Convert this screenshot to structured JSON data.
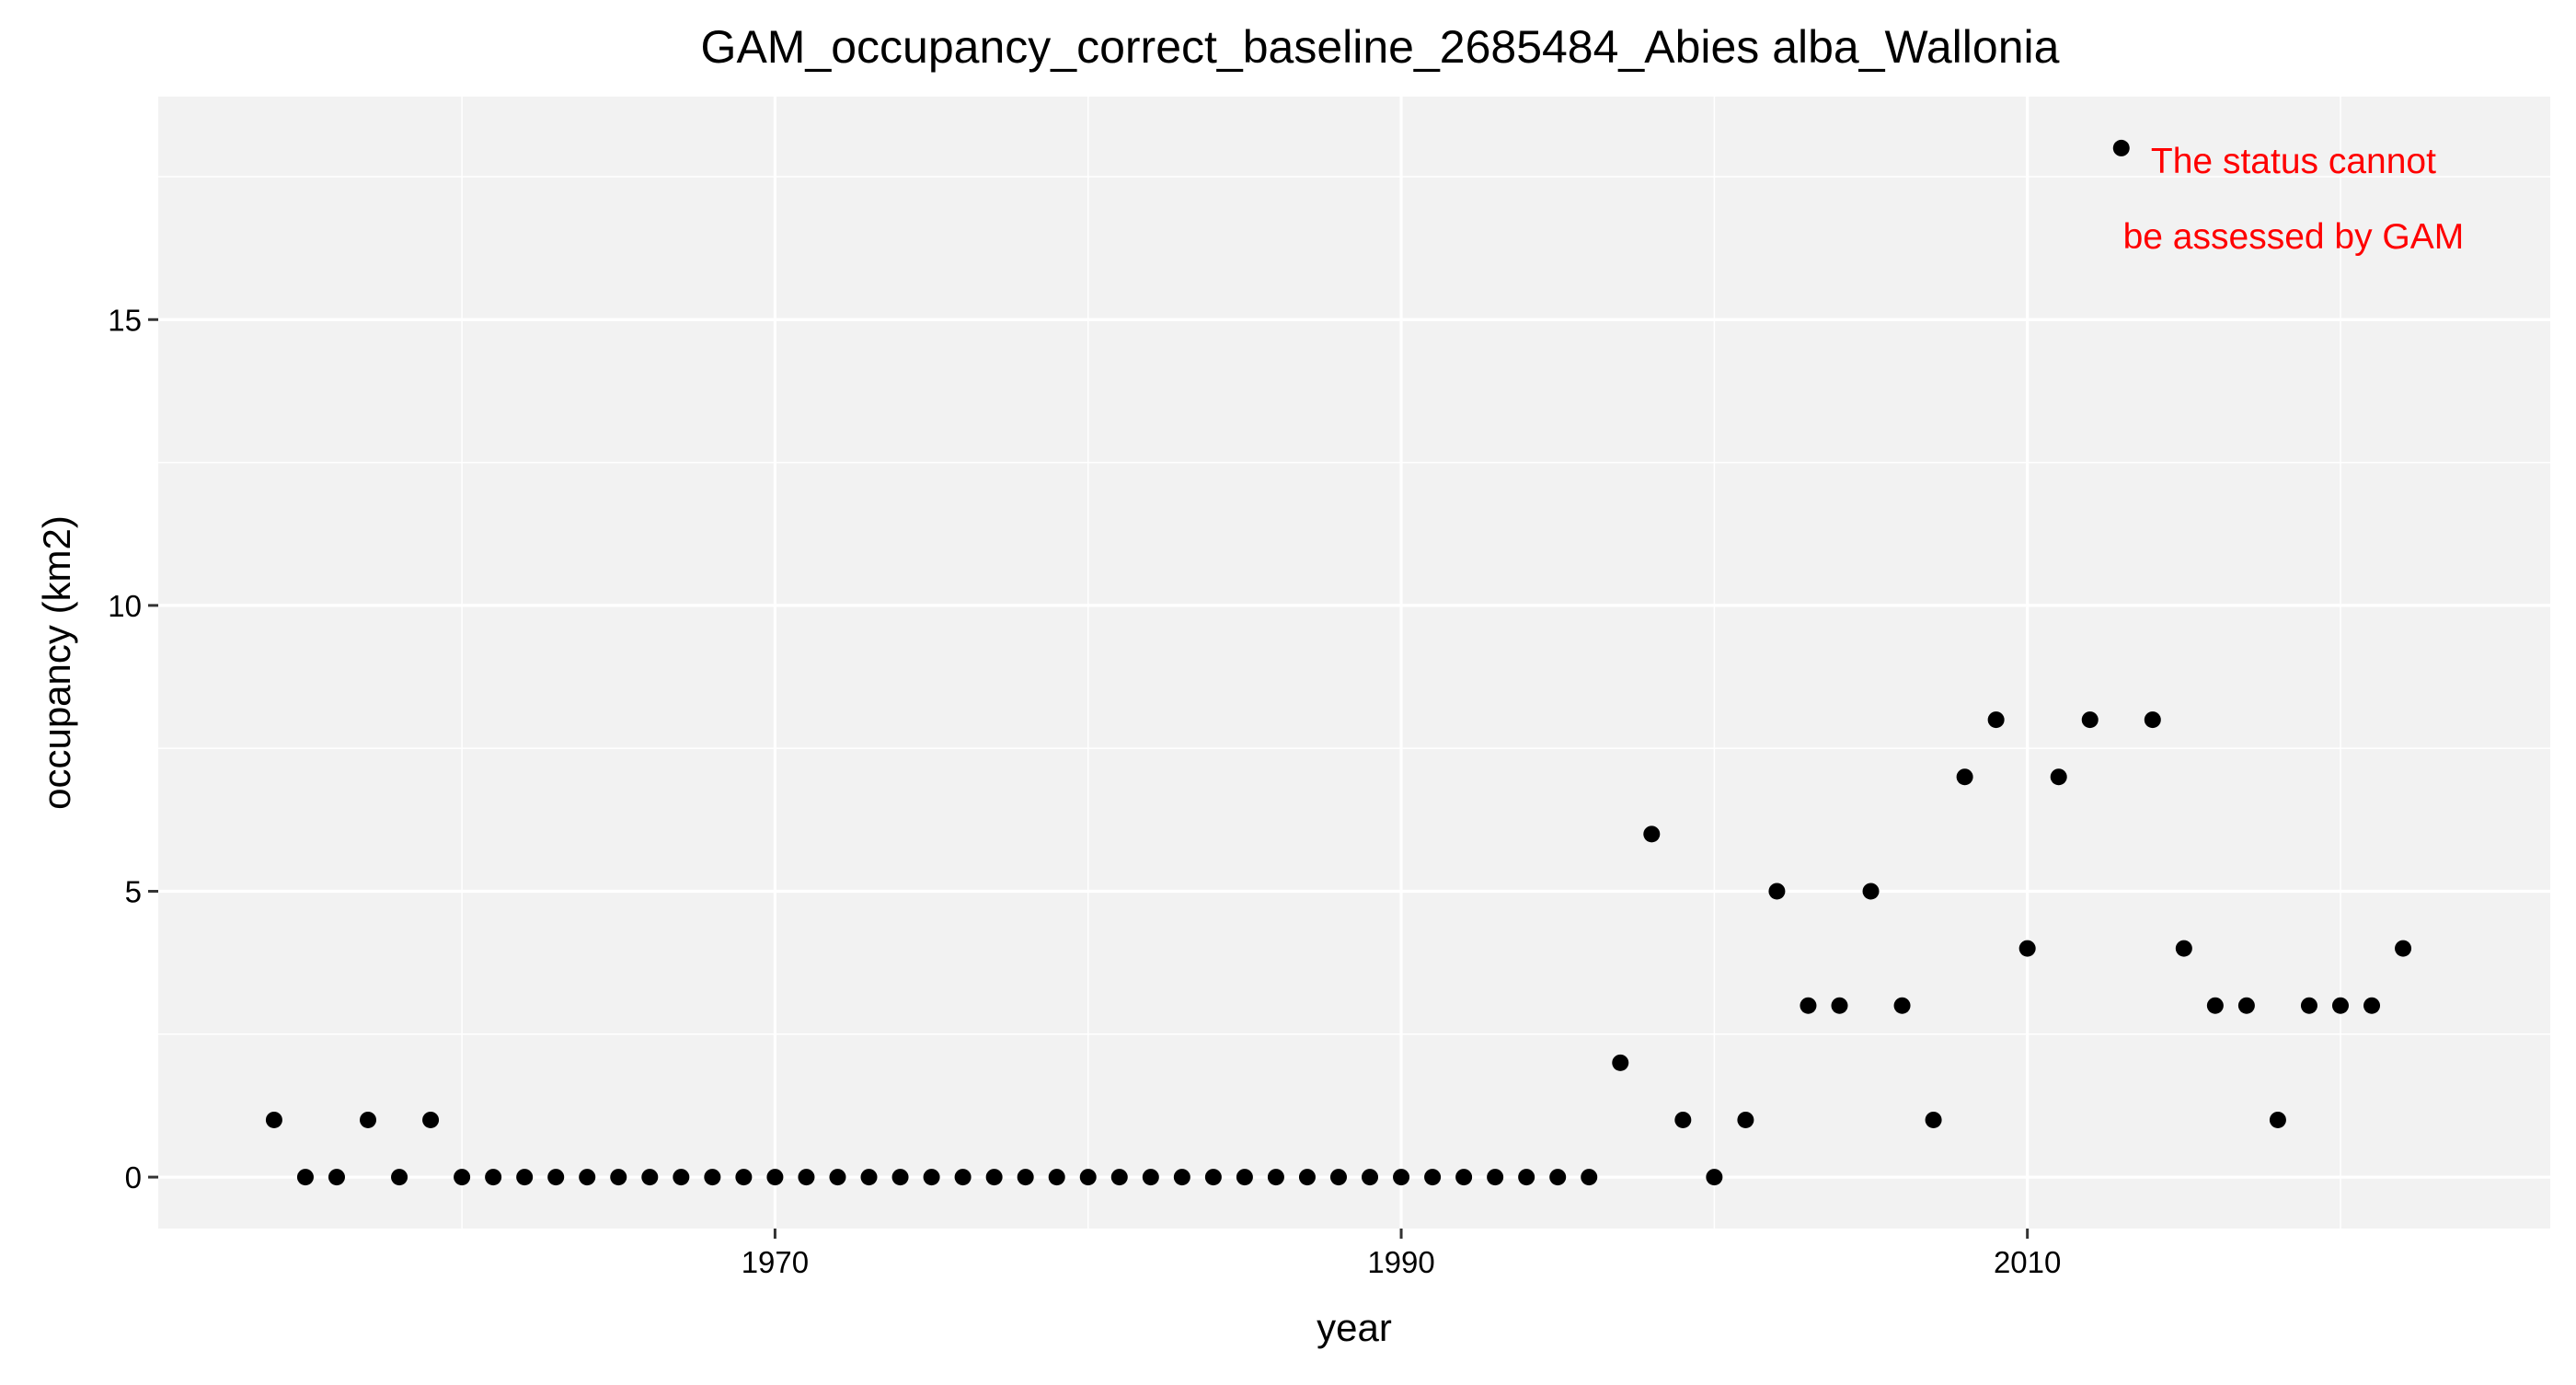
{
  "chart_data": {
    "type": "scatter",
    "title": "GAM_occupancy_correct_baseline_2685484_Abies alba_Wallonia",
    "xlabel": "year",
    "ylabel": "occupancy (km2)",
    "xlim": [
      1950.3,
      2026.7
    ],
    "ylim": [
      -0.9,
      18.9
    ],
    "x_ticks": [
      1970,
      1990,
      2010
    ],
    "x_minor_ticks": [
      1960,
      1980,
      2000,
      2020
    ],
    "y_ticks": [
      0,
      5,
      10,
      15
    ],
    "y_minor_ticks": [
      2.5,
      7.5,
      12.5,
      17.5
    ],
    "grid": true,
    "annotation": {
      "lines": [
        "The status cannot",
        "be assessed by GAM"
      ],
      "color": "#ff0000"
    },
    "series": [
      {
        "x": [
          1954,
          1955,
          1956,
          1957,
          1958,
          1959,
          1960,
          1961,
          1962,
          1963,
          1964,
          1965,
          1966,
          1967,
          1968,
          1969,
          1970,
          1971,
          1972,
          1973,
          1974,
          1975,
          1976,
          1977,
          1978,
          1979,
          1980,
          1981,
          1982,
          1983,
          1984,
          1985,
          1986,
          1987,
          1988,
          1989,
          1990,
          1991,
          1992,
          1993,
          1994,
          1995,
          1996,
          1997,
          1998,
          1999,
          2000,
          2001,
          2002,
          2003,
          2004,
          2005,
          2006,
          2007,
          2008,
          2009,
          2010,
          2011,
          2012,
          2013,
          2014,
          2015,
          2016,
          2017,
          2018,
          2019,
          2020,
          2021,
          2022
        ],
        "y": [
          1,
          0,
          0,
          1,
          0,
          1,
          0,
          0,
          0,
          0,
          0,
          0,
          0,
          0,
          0,
          0,
          0,
          0,
          0,
          0,
          0,
          0,
          0,
          0,
          0,
          0,
          0,
          0,
          0,
          0,
          0,
          0,
          0,
          0,
          0,
          0,
          0,
          0,
          0,
          0,
          0,
          0,
          0,
          2,
          6,
          1,
          0,
          1,
          5,
          3,
          3,
          5,
          3,
          1,
          7,
          8,
          4,
          7,
          8,
          18,
          8,
          4,
          3,
          3,
          1,
          3,
          3,
          3,
          4
        ]
      }
    ],
    "colors": {
      "panel_bg": "#f2f2f2",
      "grid": "#ffffff",
      "point": "#000000",
      "axis_text": "#000000"
    }
  }
}
